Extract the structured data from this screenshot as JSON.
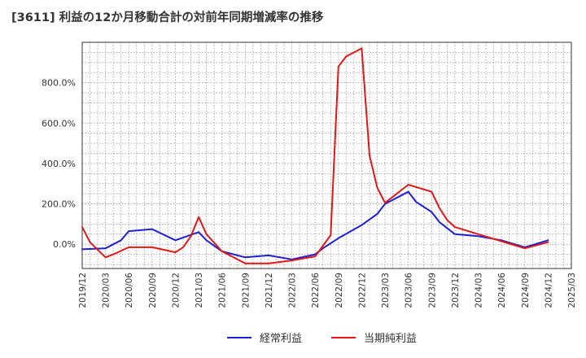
{
  "chart_data": {
    "type": "line",
    "title": "[3611]  利益の12か月移動合計の対前年同期増減率の推移",
    "xlabel": "",
    "ylabel": "",
    "ylim": [
      -120,
      1000
    ],
    "y_ticks": [
      0,
      200,
      400,
      600,
      800
    ],
    "y_tick_labels": [
      "0.0%",
      "200.0%",
      "400.0%",
      "600.0%",
      "800.0%"
    ],
    "x_tick_labels": [
      "2019/12",
      "2020/03",
      "2020/06",
      "2020/09",
      "2020/12",
      "2021/03",
      "2021/06",
      "2021/09",
      "2021/12",
      "2022/03",
      "2022/06",
      "2022/09",
      "2022/12",
      "2023/03",
      "2023/06",
      "2023/09",
      "2023/12",
      "2024/03",
      "2024/06",
      "2024/09",
      "2024/12",
      "2025/03"
    ],
    "grid": true,
    "legend_position": "bottom",
    "series": [
      {
        "name": "経常利益",
        "color": "#1f1fd1",
        "points": [
          [
            "2019/12",
            -25
          ],
          [
            "2020/03",
            -20
          ],
          [
            "2020/05",
            20
          ],
          [
            "2020/06",
            65
          ],
          [
            "2020/09",
            75
          ],
          [
            "2020/12",
            20
          ],
          [
            "2021/03",
            60
          ],
          [
            "2021/04",
            20
          ],
          [
            "2021/06",
            -35
          ],
          [
            "2021/09",
            -65
          ],
          [
            "2021/12",
            -55
          ],
          [
            "2022/03",
            -75
          ],
          [
            "2022/06",
            -50
          ],
          [
            "2022/07",
            -20
          ],
          [
            "2022/09",
            30
          ],
          [
            "2022/12",
            95
          ],
          [
            "2023/02",
            150
          ],
          [
            "2023/03",
            200
          ],
          [
            "2023/06",
            260
          ],
          [
            "2023/07",
            210
          ],
          [
            "2023/09",
            160
          ],
          [
            "2023/10",
            110
          ],
          [
            "2023/12",
            50
          ],
          [
            "2024/03",
            40
          ],
          [
            "2024/06",
            20
          ],
          [
            "2024/09",
            -15
          ],
          [
            "2024/12",
            20
          ]
        ]
      },
      {
        "name": "当期純利益",
        "color": "#e01818",
        "points": [
          [
            "2019/12",
            85
          ],
          [
            "2020/01",
            10
          ],
          [
            "2020/03",
            -65
          ],
          [
            "2020/04",
            -50
          ],
          [
            "2020/06",
            -15
          ],
          [
            "2020/09",
            -15
          ],
          [
            "2020/12",
            -40
          ],
          [
            "2021/01",
            -15
          ],
          [
            "2021/02",
            40
          ],
          [
            "2021/03",
            135
          ],
          [
            "2021/04",
            50
          ],
          [
            "2021/06",
            -35
          ],
          [
            "2021/09",
            -95
          ],
          [
            "2021/12",
            -95
          ],
          [
            "2022/03",
            -80
          ],
          [
            "2022/06",
            -60
          ],
          [
            "2022/08",
            45
          ],
          [
            "2022/09",
            880
          ],
          [
            "2022/10",
            930
          ],
          [
            "2022/12",
            970
          ],
          [
            "2023/01",
            440
          ],
          [
            "2023/02",
            280
          ],
          [
            "2023/03",
            205
          ],
          [
            "2023/06",
            295
          ],
          [
            "2023/09",
            260
          ],
          [
            "2023/10",
            180
          ],
          [
            "2023/11",
            120
          ],
          [
            "2023/12",
            85
          ],
          [
            "2024/03",
            50
          ],
          [
            "2024/06",
            15
          ],
          [
            "2024/09",
            -20
          ],
          [
            "2024/12",
            10
          ]
        ]
      }
    ]
  }
}
